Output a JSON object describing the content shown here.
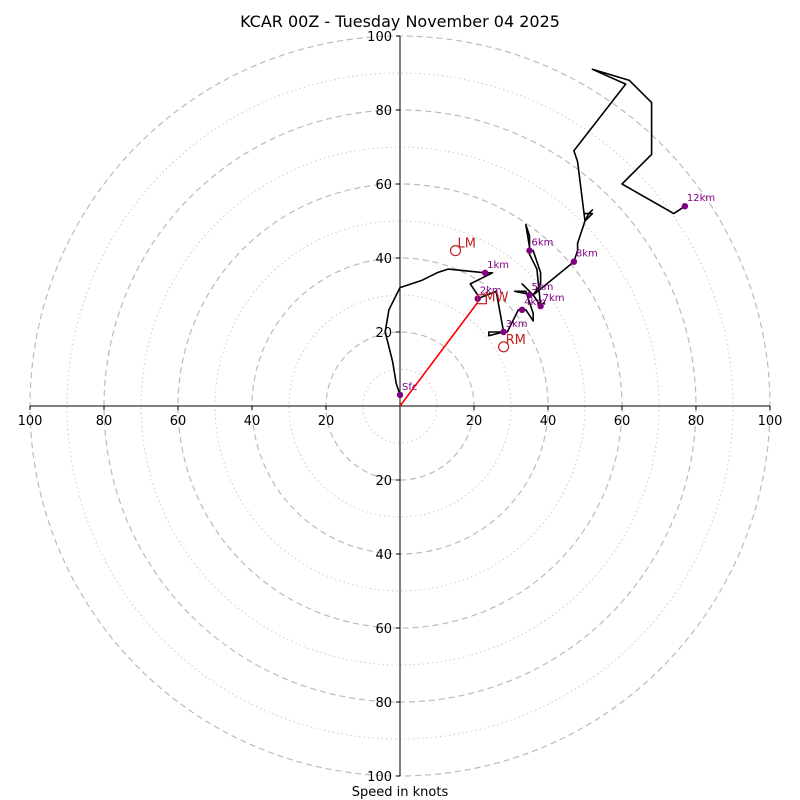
{
  "chart_data": {
    "type": "hodograph",
    "title": "KCAR 00Z - Tuesday November 04 2025",
    "xlabel": "Speed in knots",
    "max_speed": 100,
    "ring_major": [
      20,
      40,
      60,
      80,
      100
    ],
    "ring_minor": [
      10,
      30,
      50,
      70,
      90
    ],
    "x_ticks": [
      {
        "value": -100,
        "label": "100"
      },
      {
        "value": -80,
        "label": "80"
      },
      {
        "value": -60,
        "label": "60"
      },
      {
        "value": -40,
        "label": "40"
      },
      {
        "value": -20,
        "label": "20"
      },
      {
        "value": 20,
        "label": "20"
      },
      {
        "value": 40,
        "label": "40"
      },
      {
        "value": 60,
        "label": "60"
      },
      {
        "value": 80,
        "label": "80"
      },
      {
        "value": 100,
        "label": "100"
      }
    ],
    "y_ticks": [
      {
        "value": 100,
        "label": "100"
      },
      {
        "value": 80,
        "label": "80"
      },
      {
        "value": 60,
        "label": "60"
      },
      {
        "value": 40,
        "label": "40"
      },
      {
        "value": 20,
        "label": "20"
      },
      {
        "value": -20,
        "label": "20"
      },
      {
        "value": -40,
        "label": "40"
      },
      {
        "value": -60,
        "label": "60"
      },
      {
        "value": -80,
        "label": "80"
      },
      {
        "value": -100,
        "label": "100"
      }
    ],
    "trace": [
      [
        0,
        3
      ],
      [
        -1,
        6
      ],
      [
        -2,
        12
      ],
      [
        -4,
        20
      ],
      [
        -3,
        26
      ],
      [
        0,
        32
      ],
      [
        6,
        34
      ],
      [
        10,
        36
      ],
      [
        13,
        37
      ],
      [
        23,
        36
      ],
      [
        25,
        36
      ],
      [
        19,
        33
      ],
      [
        21,
        30
      ],
      [
        21,
        29
      ],
      [
        26,
        31
      ],
      [
        28,
        20
      ],
      [
        24,
        19
      ],
      [
        24,
        20
      ],
      [
        29,
        20
      ],
      [
        32,
        26
      ],
      [
        34,
        26
      ],
      [
        36,
        23
      ],
      [
        36,
        25
      ],
      [
        34,
        31
      ],
      [
        31,
        31
      ],
      [
        36,
        30
      ],
      [
        33,
        33
      ],
      [
        36,
        30
      ],
      [
        38,
        27
      ],
      [
        38,
        27
      ],
      [
        39,
        28
      ],
      [
        38,
        27
      ],
      [
        37,
        37
      ],
      [
        35,
        41
      ],
      [
        35,
        42
      ],
      [
        35,
        46
      ],
      [
        34,
        49
      ],
      [
        35,
        43
      ],
      [
        35,
        42
      ],
      [
        36,
        42
      ],
      [
        36,
        42
      ],
      [
        38,
        36
      ],
      [
        38,
        33
      ],
      [
        36,
        30
      ],
      [
        47,
        39
      ],
      [
        48,
        42
      ],
      [
        48,
        44
      ],
      [
        50,
        50
      ],
      [
        52,
        52
      ],
      [
        51,
        52
      ],
      [
        51,
        52
      ],
      [
        52,
        52
      ],
      [
        50,
        52
      ],
      [
        51,
        52
      ],
      [
        51,
        52
      ],
      [
        52,
        53
      ],
      [
        51,
        52
      ],
      [
        50,
        52
      ],
      [
        51,
        52
      ],
      [
        51,
        52
      ],
      [
        51,
        52
      ],
      [
        50,
        52
      ],
      [
        51,
        52
      ],
      [
        51,
        52
      ],
      [
        51,
        52
      ],
      [
        51,
        52
      ],
      [
        51,
        52
      ],
      [
        52,
        53
      ],
      [
        51,
        52
      ],
      [
        50,
        50
      ],
      [
        48,
        66
      ],
      [
        48,
        66
      ],
      [
        48,
        66
      ],
      [
        48,
        66
      ],
      [
        48,
        66
      ],
      [
        48,
        66
      ],
      [
        48,
        66
      ],
      [
        48,
        66
      ],
      [
        48,
        66
      ],
      [
        48,
        66
      ],
      [
        48,
        66
      ],
      [
        48,
        66
      ],
      [
        48,
        66
      ],
      [
        48,
        66
      ],
      [
        48,
        66
      ],
      [
        48,
        66
      ],
      [
        48,
        66
      ],
      [
        48,
        66
      ],
      [
        48,
        66
      ],
      [
        47,
        69
      ],
      [
        61,
        87
      ],
      [
        61,
        87
      ],
      [
        61,
        87
      ],
      [
        61,
        87
      ],
      [
        61,
        87
      ],
      [
        61,
        87
      ],
      [
        61,
        87
      ],
      [
        61,
        87
      ],
      [
        61,
        87
      ],
      [
        61,
        87
      ],
      [
        61,
        87
      ],
      [
        52,
        91
      ],
      [
        62,
        88
      ],
      [
        68,
        82
      ],
      [
        68,
        68
      ],
      [
        60,
        60
      ],
      [
        74,
        52
      ],
      [
        77,
        54
      ]
    ],
    "height_markers": [
      {
        "label": "Sfc",
        "u": 0,
        "v": 3
      },
      {
        "label": "1km",
        "u": 23,
        "v": 36
      },
      {
        "label": "2km",
        "u": 21,
        "v": 29
      },
      {
        "label": "3km",
        "u": 28,
        "v": 20
      },
      {
        "label": "4km",
        "u": 33,
        "v": 26
      },
      {
        "label": "5km",
        "u": 35,
        "v": 30
      },
      {
        "label": "6km",
        "u": 35,
        "v": 42
      },
      {
        "label": "7km",
        "u": 38,
        "v": 27
      },
      {
        "label": "8km",
        "u": 47,
        "v": 39
      },
      {
        "label": "12km",
        "u": 77,
        "v": 54
      }
    ],
    "motion_markers": [
      {
        "label": "LM",
        "u": 15,
        "v": 42
      },
      {
        "label": "RM",
        "u": 28,
        "v": 16
      }
    ],
    "mean_wind": {
      "label": "MW",
      "u": 22,
      "v": 29
    },
    "shear_vector": {
      "u": 21,
      "v": 28
    },
    "colors": {
      "trace": "#000000",
      "marker": "#800080",
      "storm_motion": "#c02020",
      "shear": "#ff0000",
      "ring": "#bbbbbb"
    }
  }
}
